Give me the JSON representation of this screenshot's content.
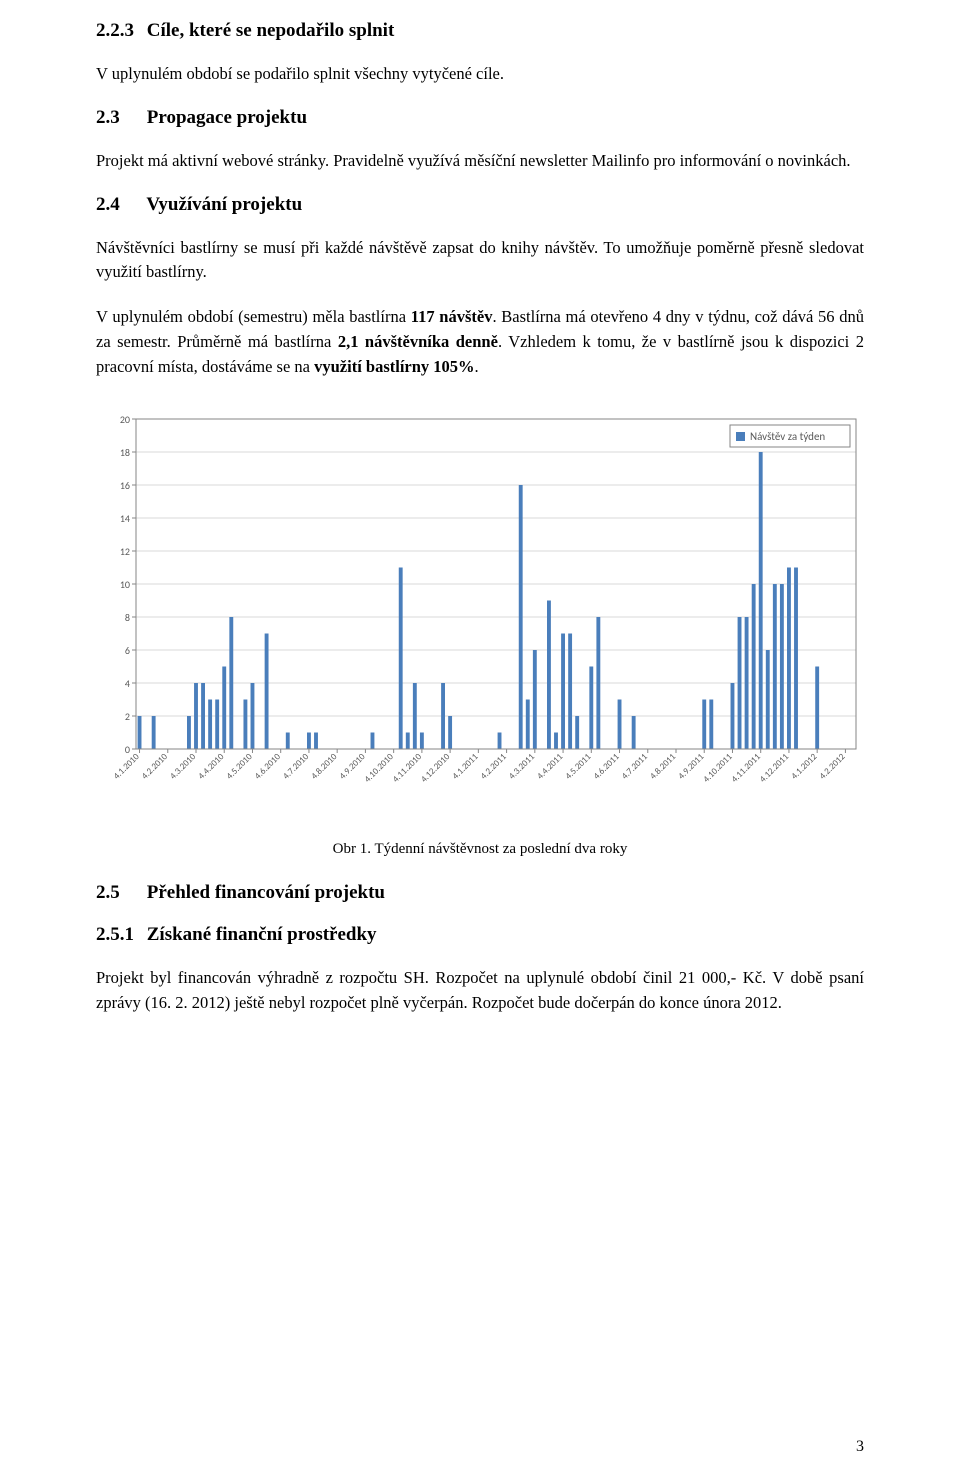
{
  "sections": {
    "s223": {
      "num": "2.2.3",
      "title": "Cíle, které se nepodařilo splnit"
    },
    "s23": {
      "num": "2.3",
      "title": "Propagace projektu"
    },
    "s24": {
      "num": "2.4",
      "title": "Využívání projektu"
    },
    "s25": {
      "num": "2.5",
      "title": "Přehled financování projektu"
    },
    "s251": {
      "num": "2.5.1",
      "title": "Získané finanční prostředky"
    }
  },
  "paragraphs": {
    "p1": "V uplynulém období se podařilo splnit všechny vytyčené cíle.",
    "p2": "Projekt má aktivní webové stránky. Pravidelně využívá měsíční newsletter Mailinfo pro informování o novinkách.",
    "p3": "Návštěvníci bastlírny se musí při každé návštěvě zapsat do knihy návštěv. To umožňuje poměrně přesně sledovat využití bastlírny.",
    "p4_pre": "V uplynulém období (semestru) měla bastlírna ",
    "p4_b1": "117 návštěv",
    "p4_mid1": ". Bastlírna má otevřeno 4 dny v týdnu, což dává 56 dnů za semestr. Průměrně má bastlírna ",
    "p4_b2": "2,1 návštěvníka denně",
    "p4_mid2": ". Vzhledem k tomu, že v bastlírně jsou k dispozici 2 pracovní místa, dostáváme se na ",
    "p4_b3": "využití bastlírny 105%",
    "p4_post": ".",
    "p5": "Projekt byl financován výhradně z rozpočtu SH. Rozpočet na uplynulé období činil 21 000,- Kč. V době psaní zprávy (16. 2. 2012) ještě nebyl rozpočet plně vyčerpán. Rozpočet bude dočerpán do konce února 2012."
  },
  "chart": {
    "type": "bar",
    "legend_label": "Návštěv za týden",
    "legend_color": "#4a7ebb",
    "bar_color": "#4a7ebb",
    "plot_bg": "#ffffff",
    "border_color": "#868686",
    "grid_color": "#d9d9d9",
    "text_color": "#595959",
    "legend_box_border": "#868686",
    "ylim": [
      0,
      20
    ],
    "ytick_step": 2,
    "yticks": [
      0,
      2,
      4,
      6,
      8,
      10,
      12,
      14,
      16,
      18,
      20
    ],
    "x_major_labels": [
      "4.1.2010",
      "4.2.2010",
      "4.3.2010",
      "4.4.2010",
      "4.5.2010",
      "4.6.2010",
      "4.7.2010",
      "4.8.2010",
      "4.9.2010",
      "4.10.2010",
      "4.11.2010",
      "4.12.2010",
      "4.1.2011",
      "4.2.2011",
      "4.3.2011",
      "4.4.2011",
      "4.5.2011",
      "4.6.2011",
      "4.7.2011",
      "4.8.2011",
      "4.9.2011",
      "4.10.2011",
      "4.11.2011",
      "4.12.2011",
      "4.1.2012",
      "4.2.2012"
    ],
    "values": [
      2,
      0,
      2,
      0,
      0,
      0,
      0,
      2,
      4,
      4,
      3,
      3,
      5,
      8,
      0,
      3,
      4,
      0,
      7,
      0,
      0,
      1,
      0,
      0,
      1,
      1,
      0,
      0,
      0,
      0,
      0,
      0,
      0,
      1,
      0,
      0,
      0,
      11,
      1,
      4,
      1,
      0,
      0,
      4,
      2,
      0,
      0,
      0,
      0,
      0,
      0,
      1,
      0,
      0,
      16,
      3,
      6,
      0,
      9,
      1,
      7,
      7,
      2,
      0,
      5,
      8,
      0,
      0,
      3,
      0,
      2,
      0,
      0,
      0,
      0,
      0,
      0,
      0,
      0,
      0,
      3,
      3,
      0,
      0,
      4,
      8,
      8,
      10,
      18,
      6,
      10,
      10,
      11,
      11,
      0,
      0,
      5,
      0,
      0,
      0,
      0,
      0
    ],
    "label_fontsize": 9,
    "tick_fontsize": 10,
    "caption": "Obr 1. Týdenní návštěvnost za poslední dva roky"
  },
  "page_number": "3"
}
